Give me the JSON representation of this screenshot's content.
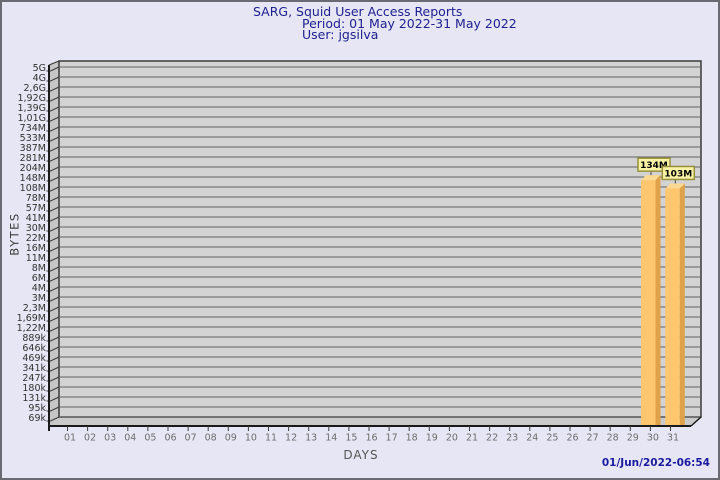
{
  "window": {
    "background": "#E6E6F5",
    "border_color": "#6A6A74"
  },
  "header": {
    "title": "SARG, Squid User Access Reports",
    "period": "Period: 01 May 2022-31 May 2022",
    "user": "User: jgsilva"
  },
  "footer": {
    "generated": "01/Jun/2022-06:54"
  },
  "chart_data": {
    "type": "bar",
    "title": "SARG, Squid User Access Reports",
    "subtitle": [
      "Period: 01 May 2022-31 May 2022",
      "User: jgsilva"
    ],
    "xlabel": "DAYS",
    "ylabel": "BYTES",
    "y_scale": "logarithmic",
    "grid": true,
    "style": "3d-bars",
    "y_tick_labels": [
      "5G",
      "4G",
      "2,6G",
      "1,92G",
      "1,39G",
      "1,01G",
      "734M",
      "533M",
      "387M",
      "281M",
      "204M",
      "148M",
      "108M",
      "78M",
      "57M",
      "41M",
      "30M",
      "22M",
      "16M",
      "11M",
      "8M",
      "6M",
      "4M",
      "3M",
      "2,3M",
      "1,69M",
      "1,22M",
      "889k",
      "646k",
      "469k",
      "341k",
      "247k",
      "180k",
      "131k",
      "95k",
      "69k"
    ],
    "x_tick_labels": [
      "01",
      "02",
      "03",
      "04",
      "05",
      "06",
      "07",
      "08",
      "09",
      "10",
      "11",
      "12",
      "13",
      "14",
      "15",
      "16",
      "17",
      "18",
      "19",
      "20",
      "21",
      "22",
      "23",
      "24",
      "25",
      "26",
      "27",
      "28",
      "29",
      "30",
      "31"
    ],
    "bars": [
      {
        "day": "30",
        "value_label": "134M",
        "value_bytes": 134000000
      },
      {
        "day": "31",
        "value_label": "103M",
        "value_bytes": 103000000
      }
    ],
    "colors": {
      "bar_front": "#FEC76F",
      "bar_side": "#DFA24B",
      "bar_top": "#FBD993",
      "value_box_bg": "#F9F3A6",
      "value_box_border": "#97903B",
      "value_text": "#000000",
      "plot_bg": "#D3D3D3",
      "wall_bg": "#C6C6C6",
      "floor_bg": "#CACACA",
      "gridline": "#616161",
      "axis": "#1A1A1A",
      "tick": "#3A3A3A",
      "y_label_color": "#333333",
      "day_label_color": "#6E6E6E",
      "title_color": "#202090",
      "timestamp_color": "#1B1BA0"
    }
  }
}
